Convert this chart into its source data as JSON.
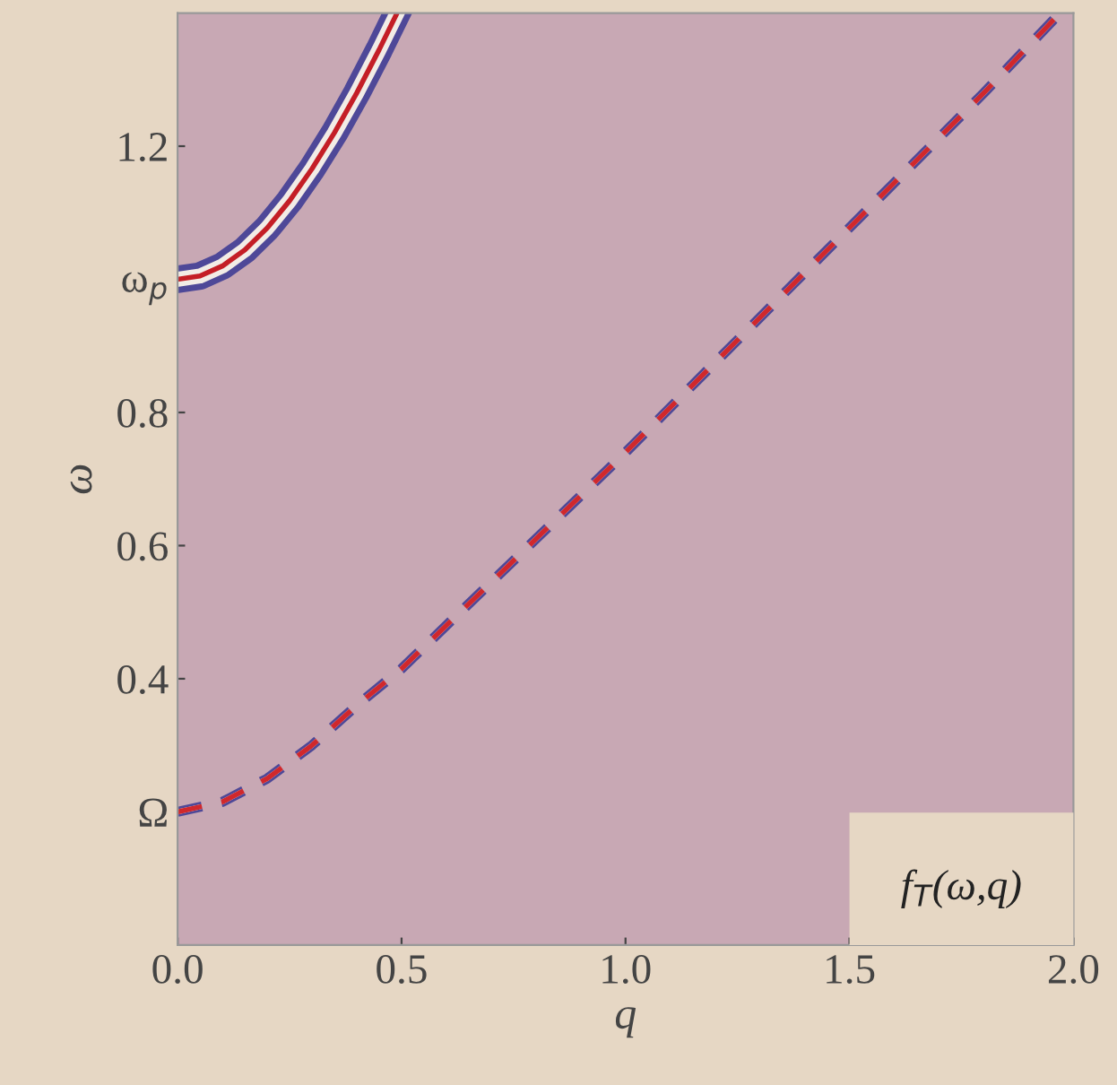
{
  "chart_data": {
    "type": "line",
    "xlabel": "q",
    "ylabel": "ω",
    "xlim": [
      0,
      2.0
    ],
    "ylim": [
      0,
      1.4
    ],
    "xticks": [
      {
        "value": 0,
        "label": "0.0"
      },
      0.5,
      {
        "value": 1,
        "label": "1.0"
      },
      1.5,
      {
        "value": 2,
        "label": "2.0"
      }
    ],
    "yticks": [
      {
        "value": 0.2,
        "label": "Ω"
      },
      0.4,
      0.6,
      0.8,
      {
        "value": 1.0,
        "label": "ω$_{p}$"
      },
      1.2
    ],
    "series": [
      {
        "color": "#c41e26",
        "line_style": "solid",
        "x": [
          0,
          0.05,
          0.1,
          0.15,
          0.2,
          0.25,
          0.3,
          0.35,
          0.4,
          0.45,
          0.49
        ],
        "values": [
          1.0,
          1.005,
          1.02,
          1.044,
          1.077,
          1.118,
          1.166,
          1.22,
          1.28,
          1.345,
          1.4
        ]
      },
      {
        "color": "#d0282c",
        "line_style": "dashed",
        "x": [
          0,
          0.1,
          0.2,
          0.3,
          0.4,
          0.5,
          0.6,
          0.8,
          1.0,
          1.2,
          1.4,
          1.6,
          1.8,
          1.97
        ],
        "values": [
          0.2,
          0.215,
          0.25,
          0.3,
          0.36,
          0.415,
          0.48,
          0.61,
          0.74,
          0.875,
          1.01,
          1.145,
          1.28,
          1.4
        ]
      }
    ],
    "annotations": [
      "f$_{T}$(ω,q)"
    ],
    "grid": false,
    "legend": false,
    "marker": "none"
  }
}
